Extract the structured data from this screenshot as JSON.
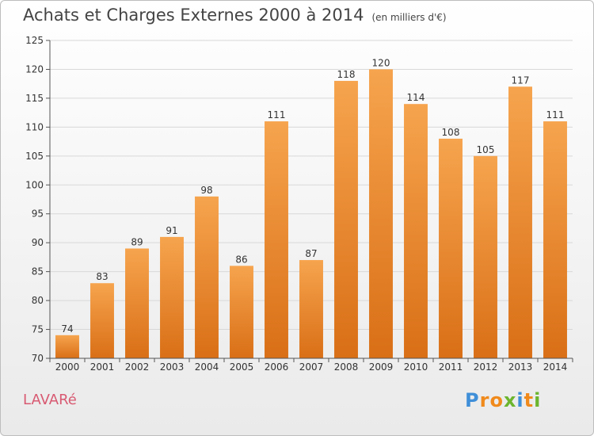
{
  "title": "Achats et Charges Externes 2000 à 2014",
  "unit": "(en milliers d'€)",
  "city": "LAVARé",
  "logo": {
    "p": "P",
    "r": "r",
    "o": "o",
    "x": "x",
    "i1": "i",
    "t": "t",
    "i2": "i"
  },
  "colors": {
    "bar_top": "#f6a44e",
    "bar_bottom": "#d96f16",
    "grid": "#d8d8d8",
    "axis": "#555555"
  },
  "chart_data": {
    "type": "bar",
    "title": "Achats et Charges Externes 2000 à 2014",
    "subtitle": "(en milliers d'€)",
    "categories": [
      "2000",
      "2001",
      "2002",
      "2003",
      "2004",
      "2005",
      "2006",
      "2007",
      "2008",
      "2009",
      "2010",
      "2011",
      "2012",
      "2013",
      "2014"
    ],
    "values": [
      74,
      83,
      89,
      91,
      98,
      86,
      111,
      87,
      118,
      120,
      114,
      108,
      105,
      117,
      111
    ],
    "ylim": [
      70,
      125
    ],
    "yticks": [
      70,
      75,
      80,
      85,
      90,
      95,
      100,
      105,
      110,
      115,
      120,
      125
    ],
    "grid": true,
    "data_labels": true
  }
}
